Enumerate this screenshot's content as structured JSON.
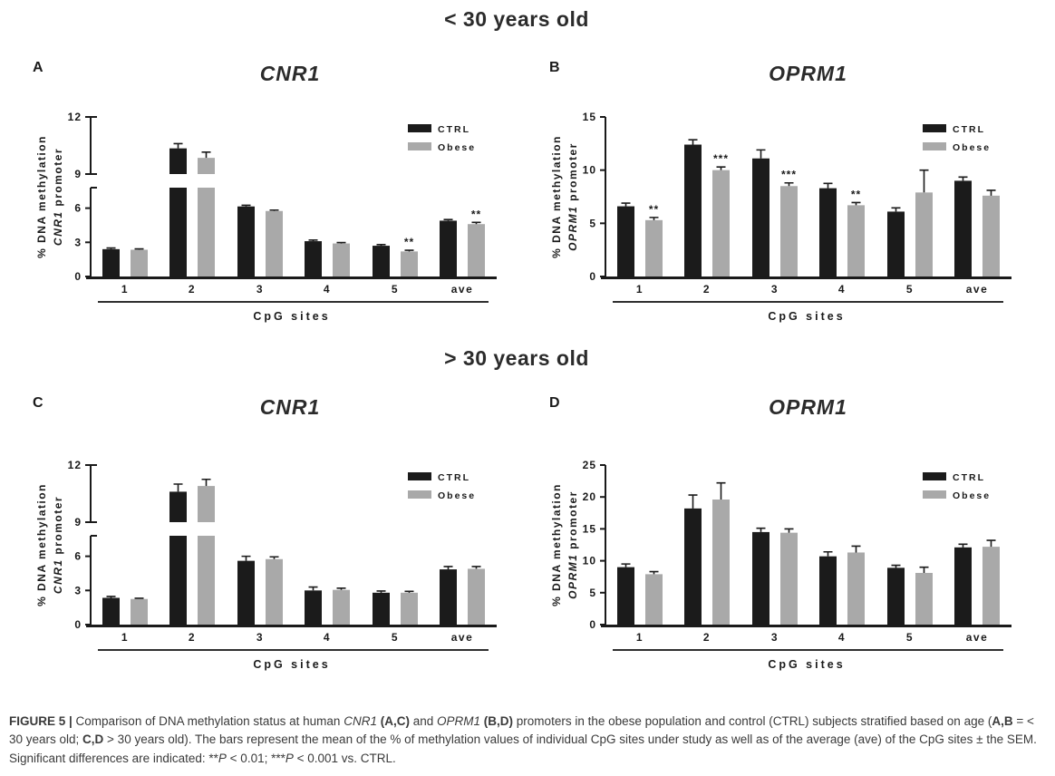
{
  "titles": {
    "top": "< 30 years old",
    "bottom": "> 30 years old"
  },
  "legend": {
    "ctrl": "CTRL",
    "obese": "Obese"
  },
  "colors": {
    "ctrl": "#1b1b1b",
    "obese": "#a9a9a9",
    "axis": "#1a1a1a"
  },
  "chart_data": [
    {
      "id": "A",
      "type": "bar",
      "title": "CNR1",
      "group": "< 30 years old",
      "xlabel": "CpG sites",
      "ylabel_line1": "% DNA methylation",
      "ylabel_gene": "CNR1",
      "ylabel_rest": " promoter",
      "categories": [
        "1",
        "2",
        "3",
        "4",
        "5",
        "ave"
      ],
      "series": [
        {
          "name": "CTRL",
          "values": [
            2.4,
            10.35,
            6.15,
            3.1,
            2.7,
            4.9
          ],
          "errors": [
            0.1,
            0.25,
            0.1,
            0.1,
            0.1,
            0.1
          ]
        },
        {
          "name": "Obese",
          "values": [
            2.35,
            9.85,
            5.75,
            2.9,
            2.2,
            4.6
          ],
          "errors": [
            0.07,
            0.3,
            0.08,
            0.08,
            0.1,
            0.15
          ]
        }
      ],
      "sig_obese": [
        "",
        "",
        "",
        "",
        "**",
        "**"
      ],
      "axis": {
        "type": "broken",
        "lower": [
          0,
          7.8
        ],
        "lowerTicks": [
          0,
          3,
          6
        ],
        "upper": [
          9,
          12
        ],
        "upperTicks": [
          9,
          12
        ]
      },
      "legend_position": "top-right",
      "grid": false
    },
    {
      "id": "B",
      "type": "bar",
      "title": "OPRM1",
      "group": "< 30 years old",
      "xlabel": "CpG sites",
      "ylabel_line1": "% DNA methylation",
      "ylabel_gene": "OPRM1",
      "ylabel_rest": " promoter",
      "categories": [
        "1",
        "2",
        "3",
        "4",
        "5",
        "ave"
      ],
      "series": [
        {
          "name": "CTRL",
          "values": [
            6.6,
            12.4,
            11.1,
            8.3,
            6.1,
            9.0
          ],
          "errors": [
            0.3,
            0.45,
            0.8,
            0.45,
            0.35,
            0.35
          ]
        },
        {
          "name": "Obese",
          "values": [
            5.3,
            10.0,
            8.5,
            6.7,
            7.9,
            7.6
          ],
          "errors": [
            0.25,
            0.3,
            0.3,
            0.25,
            2.1,
            0.5
          ]
        }
      ],
      "sig_obese": [
        "**",
        "***",
        "***",
        "**",
        "",
        ""
      ],
      "axis": {
        "type": "linear",
        "ylim": [
          0,
          15
        ],
        "ticks": [
          0,
          5,
          10,
          15
        ]
      },
      "legend_position": "top-right",
      "grid": false
    },
    {
      "id": "C",
      "type": "bar",
      "title": "CNR1",
      "group": "> 30 years old",
      "xlabel": "CpG sites",
      "ylabel_line1": "% DNA methylation",
      "ylabel_gene": "CNR1",
      "ylabel_rest": " promoter",
      "categories": [
        "1",
        "2",
        "3",
        "4",
        "5",
        "ave"
      ],
      "series": [
        {
          "name": "CTRL",
          "values": [
            2.35,
            10.6,
            5.6,
            3.0,
            2.8,
            4.85
          ],
          "errors": [
            0.12,
            0.4,
            0.4,
            0.3,
            0.15,
            0.25
          ]
        },
        {
          "name": "Obese",
          "values": [
            2.25,
            10.9,
            5.75,
            3.05,
            2.8,
            4.9
          ],
          "errors": [
            0.06,
            0.35,
            0.2,
            0.15,
            0.12,
            0.2
          ]
        }
      ],
      "sig_obese": [
        "",
        "",
        "",
        "",
        "",
        ""
      ],
      "axis": {
        "type": "broken",
        "lower": [
          0,
          7.8
        ],
        "lowerTicks": [
          0,
          3,
          6
        ],
        "upper": [
          9,
          12
        ],
        "upperTicks": [
          9,
          12
        ]
      },
      "legend_position": "top-right",
      "grid": false
    },
    {
      "id": "D",
      "type": "bar",
      "title": "OPRM1",
      "group": "> 30 years old",
      "xlabel": "CpG sites",
      "ylabel_line1": "% DNA methylation",
      "ylabel_gene": "OPRM1",
      "ylabel_rest": " promoter",
      "categories": [
        "1",
        "2",
        "3",
        "4",
        "5",
        "ave"
      ],
      "series": [
        {
          "name": "CTRL",
          "values": [
            9.0,
            18.2,
            14.5,
            10.7,
            8.9,
            12.1
          ],
          "errors": [
            0.5,
            2.1,
            0.6,
            0.7,
            0.4,
            0.5
          ]
        },
        {
          "name": "Obese",
          "values": [
            7.9,
            19.6,
            14.4,
            11.3,
            8.1,
            12.2
          ],
          "errors": [
            0.4,
            2.6,
            0.6,
            1.0,
            0.9,
            1.0
          ]
        }
      ],
      "sig_obese": [
        "",
        "",
        "",
        "",
        "",
        ""
      ],
      "axis": {
        "type": "linear",
        "ylim": [
          0,
          25
        ],
        "ticks": [
          0,
          5,
          10,
          15,
          20,
          25
        ]
      },
      "legend_position": "top-right",
      "grid": false
    }
  ],
  "caption": {
    "segments": [
      {
        "t": "FIGURE 5 | ",
        "b": true
      },
      {
        "t": "Comparison of DNA methylation status at human "
      },
      {
        "t": "CNR1",
        "i": true
      },
      {
        "t": " "
      },
      {
        "t": "(A,C)",
        "b": true
      },
      {
        "t": " and "
      },
      {
        "t": "OPRM1",
        "i": true
      },
      {
        "t": " "
      },
      {
        "t": "(B,D)",
        "b": true
      },
      {
        "t": " promoters in the obese population and control (CTRL) subjects stratified based on age ("
      },
      {
        "t": "A,B",
        "b": true
      },
      {
        "t": " = < 30 years old; "
      },
      {
        "t": "C,D",
        "b": true
      },
      {
        "t": " > 30 years old). The bars represent the mean of the % of methylation values of individual CpG sites under study as well as of the average (ave) of the CpG sites ± the SEM. Significant differences are indicated: **"
      },
      {
        "t": "P",
        "i": true
      },
      {
        "t": " < 0.01; ***"
      },
      {
        "t": "P",
        "i": true
      },
      {
        "t": " < 0.001 vs. CTRL."
      }
    ]
  }
}
